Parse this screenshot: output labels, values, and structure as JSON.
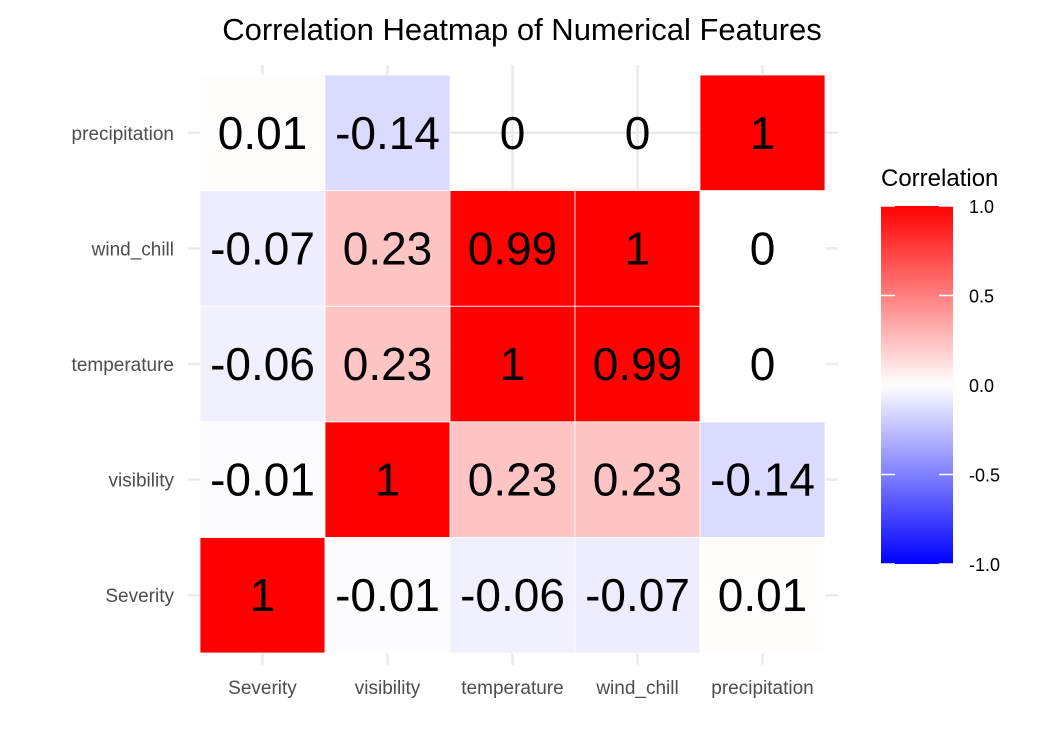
{
  "chart_data": {
    "type": "heatmap",
    "title": "Correlation Heatmap of Numerical Features",
    "xlabel": "",
    "ylabel": "",
    "x_categories": [
      "Severity",
      "visibility",
      "temperature",
      "wind_chill",
      "precipitation"
    ],
    "y_categories": [
      "Severity",
      "visibility",
      "temperature",
      "wind_chill",
      "precipitation"
    ],
    "matrix": [
      [
        1,
        -0.01,
        -0.06,
        -0.07,
        0.01
      ],
      [
        -0.01,
        1,
        0.23,
        0.23,
        -0.14
      ],
      [
        -0.06,
        0.23,
        1,
        0.99,
        0
      ],
      [
        -0.07,
        0.23,
        0.99,
        1,
        0
      ],
      [
        0.01,
        -0.14,
        0,
        0,
        1
      ]
    ],
    "visible_cells": [
      [
        true,
        true,
        true,
        true,
        true
      ],
      [
        true,
        true,
        true,
        true,
        true
      ],
      [
        true,
        true,
        true,
        true,
        true
      ],
      [
        true,
        true,
        true,
        true,
        true
      ],
      [
        true,
        true,
        false,
        false,
        true
      ]
    ],
    "cell_labels": [
      [
        "1",
        "-0.01",
        "-0.06",
        "-0.07",
        "0.01"
      ],
      [
        "-0.01",
        "1",
        "0.23",
        "0.23",
        "-0.14"
      ],
      [
        "-0.06",
        "0.23",
        "1",
        "0.99",
        "0"
      ],
      [
        "-0.07",
        "0.23",
        "0.99",
        "1",
        "0"
      ],
      [
        "0.01",
        "-0.14",
        "0",
        "0",
        "1"
      ]
    ],
    "legend": {
      "title": "Correlation",
      "range": [
        -1,
        1
      ],
      "ticks": [
        1.0,
        0.5,
        0.0,
        -0.5,
        -1.0
      ],
      "tick_labels": [
        "1.0",
        "0.5",
        "0.0",
        "-0.5",
        "-1.0"
      ],
      "placement": "right",
      "colors": {
        "low": "#0000ff",
        "mid": "#ffffff",
        "high": "#ff0000"
      }
    },
    "grid": true
  }
}
